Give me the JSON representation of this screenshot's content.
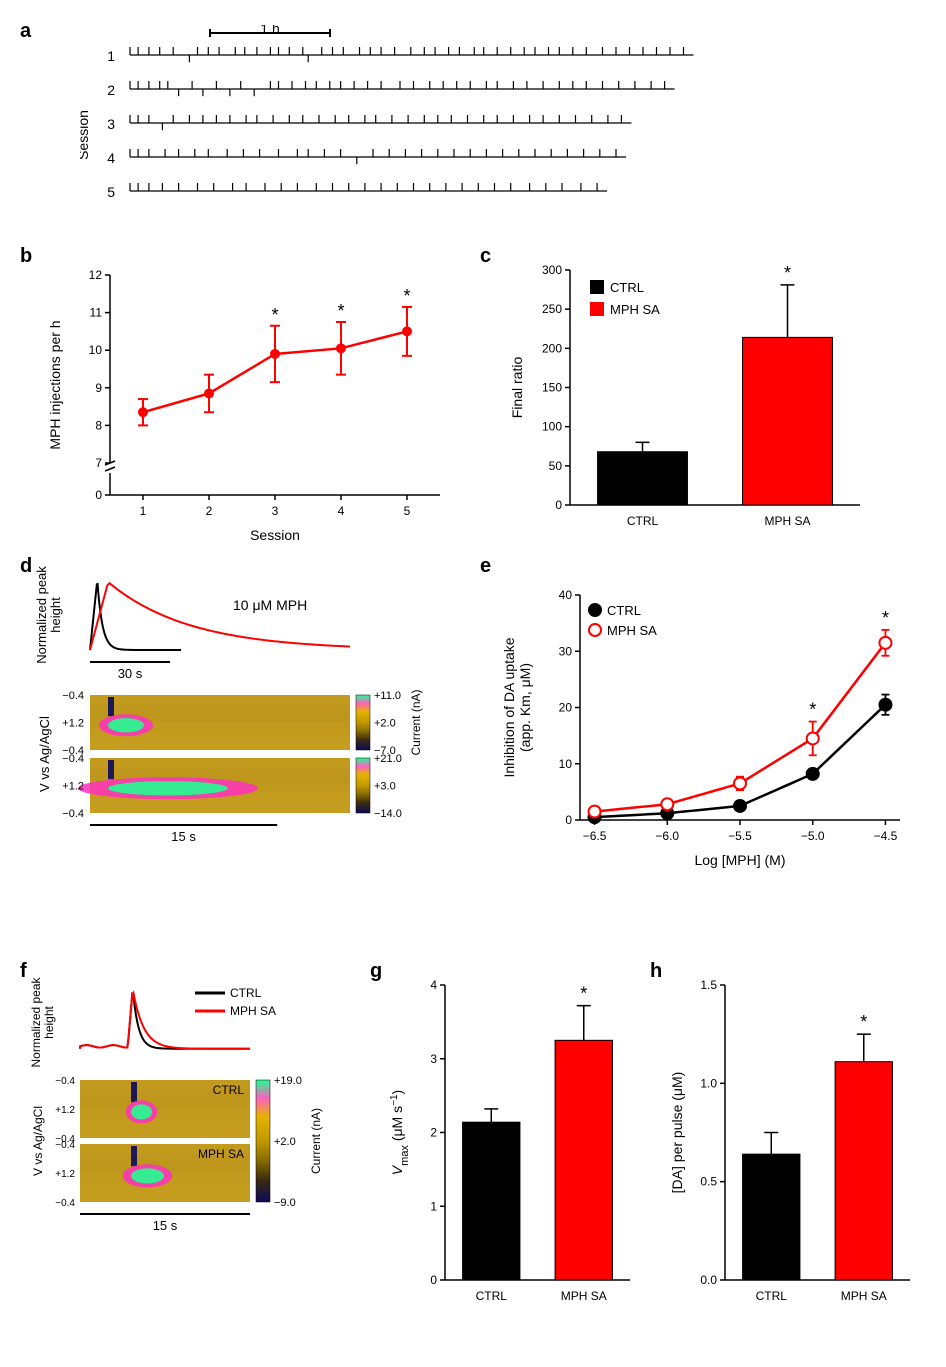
{
  "panelLabels": {
    "a": "a",
    "b": "b",
    "c": "c",
    "d": "d",
    "e": "e",
    "f": "f",
    "g": "g",
    "h": "h"
  },
  "panelA": {
    "ylabel": "Session",
    "scalebar_label": "1 h",
    "sessions": [
      {
        "label": "1",
        "ticks": [
          0,
          6,
          14,
          22,
          32,
          44,
          50,
          58,
          66,
          78,
          85,
          94,
          104,
          110,
          118,
          128,
          132,
          142,
          150,
          158,
          170,
          178,
          186,
          196,
          208,
          218,
          226,
          236,
          244,
          255,
          262,
          272,
          282,
          292,
          300,
          310,
          318,
          328,
          338,
          350,
          360,
          370,
          380,
          390,
          400,
          410
        ]
      },
      {
        "label": "2",
        "ticks": [
          0,
          6,
          14,
          22,
          28,
          36,
          46,
          54,
          64,
          74,
          82,
          92,
          104,
          110,
          120,
          130,
          138,
          148,
          156,
          166,
          176,
          186,
          200,
          210,
          222,
          232,
          242,
          252,
          264,
          272,
          284,
          294,
          306,
          318,
          328,
          338,
          350,
          362,
          374,
          386,
          396
        ]
      },
      {
        "label": "3",
        "ticks": [
          0,
          6,
          14,
          24,
          32,
          44,
          54,
          64,
          74,
          86,
          94,
          106,
          118,
          128,
          140,
          152,
          162,
          174,
          182,
          194,
          206,
          218,
          228,
          238,
          250,
          262,
          272,
          284,
          296,
          306,
          318,
          330,
          342,
          354,
          364
        ]
      },
      {
        "label": "4",
        "ticks": [
          0,
          6,
          14,
          26,
          36,
          48,
          58,
          72,
          84,
          96,
          110,
          124,
          132,
          144,
          156,
          168,
          180,
          192,
          204,
          216,
          228,
          240,
          252,
          264,
          276,
          288,
          300,
          312,
          324,
          336,
          348,
          360
        ]
      },
      {
        "label": "5",
        "ticks": [
          0,
          6,
          14,
          24,
          36,
          50,
          62,
          76,
          86,
          100,
          112,
          124,
          138,
          150,
          162,
          174,
          186,
          198,
          210,
          222,
          234,
          246,
          258,
          270,
          282,
          296,
          308,
          320,
          334,
          346
        ]
      }
    ],
    "scalebar_x0": 130,
    "scalebar_x1": 250,
    "line_color": "#000000"
  },
  "panelB": {
    "type": "line",
    "xlabel": "Session",
    "ylabel": "MPH injections per h",
    "xvals": [
      1,
      2,
      3,
      4,
      5
    ],
    "yvals": [
      8.35,
      8.85,
      9.9,
      10.05,
      10.5
    ],
    "yerr": [
      0.35,
      0.5,
      0.75,
      0.7,
      0.65
    ],
    "stars": [
      false,
      false,
      true,
      true,
      true
    ],
    "xlim": [
      0.5,
      5.5
    ],
    "ylim_low": 7,
    "ylim_high": 12,
    "yticks": [
      0,
      7,
      8,
      9,
      10,
      11,
      12
    ],
    "line_color": "#ff0000",
    "label_fontsize": 14,
    "tick_fontsize": 12,
    "star": "*"
  },
  "panelC": {
    "type": "bar",
    "ylabel": "Final ratio",
    "categories": [
      "CTRL",
      "MPH SA"
    ],
    "values": [
      68,
      214
    ],
    "errors": [
      12,
      67
    ],
    "colors": [
      "#000000",
      "#ff0000"
    ],
    "ylim": [
      0,
      300
    ],
    "ytick_step": 50,
    "star": "*",
    "label_fontsize": 14,
    "tick_fontsize": 12,
    "legend_box_size": 14
  },
  "panelD": {
    "ylabel_top": "Normalized peak\nheight",
    "ylabel_bot": "V vs Ag/AgCl",
    "annotation": "10 μM MPH",
    "scalebar_top": "30 s",
    "scalebar_bot": "15 s",
    "voltage_ticks": [
      "−0.4",
      "+1.2",
      "−0.4",
      "−0.4",
      "+1.2",
      "−0.4"
    ],
    "colorbar1": {
      "labels": [
        "+11.0",
        "+2.0",
        "−7.0"
      ],
      "unit": "Current (nA)"
    },
    "colorbar2": {
      "labels": [
        "+21.0",
        "+3.0",
        "−14.0"
      ]
    },
    "trace_colors": {
      "black": "#000000",
      "red": "#ff0000"
    }
  },
  "panelE": {
    "type": "line",
    "xlabel": "Log [MPH] (M)",
    "ylabel": "Inhibition of DA uptake\n(app. Km, μM)",
    "xticks": [
      -6.5,
      -6.0,
      -5.5,
      -5.0,
      -4.5
    ],
    "xtick_labels": [
      "−6.5",
      "−6.0",
      "−5.5",
      "−5.0",
      "−4.5"
    ],
    "yticks": [
      0,
      10,
      20,
      30,
      40
    ],
    "series": [
      {
        "name": "CTRL",
        "color": "#000000",
        "fill": "#000000",
        "x": [
          -6.5,
          -6.0,
          -5.5,
          -5.0,
          -4.5
        ],
        "y": [
          0.5,
          1.2,
          2.5,
          8.2,
          20.5
        ],
        "err": [
          0.3,
          0.4,
          0.5,
          0.8,
          1.8
        ]
      },
      {
        "name": "MPH SA",
        "color": "#ff0000",
        "fill": "#ffffff",
        "x": [
          -6.5,
          -6.0,
          -5.5,
          -5.0,
          -4.5
        ],
        "y": [
          1.5,
          2.8,
          6.5,
          14.5,
          31.5
        ],
        "err": [
          0.4,
          0.6,
          1.2,
          3.0,
          2.3
        ]
      }
    ],
    "stars_x": [
      -5.0,
      -4.5
    ],
    "star": "*",
    "legend_marker_size": 6,
    "label_fontsize": 14,
    "tick_fontsize": 12
  },
  "panelF": {
    "ylabel_top": "Normalized peak\nheight",
    "ylabel_bot": "V vs Ag/AgCl",
    "legend": [
      "CTRL",
      "MPH SA"
    ],
    "legend_colors": [
      "#000000",
      "#ff0000"
    ],
    "scalebar": "15 s",
    "voltage_ticks": [
      "−0.4",
      "+1.2",
      "−0.4",
      "−0.4",
      "+1.2",
      "−0.4"
    ],
    "heatmap_labels": [
      "CTRL",
      "MPH SA"
    ],
    "colorbar": {
      "labels": [
        "+19.0",
        "+2.0",
        "−9.0"
      ],
      "unit": "Current (nA)"
    }
  },
  "panelG": {
    "type": "bar",
    "ylabel": "Vmax (μM s−1)",
    "ylabel_parts": {
      "italic_V": "V",
      "sub": "max",
      "rest": " (μM s",
      "sup": "−1",
      "end": ")"
    },
    "categories": [
      "CTRL",
      "MPH SA"
    ],
    "values": [
      2.14,
      3.25
    ],
    "errors": [
      0.18,
      0.47
    ],
    "colors": [
      "#000000",
      "#ff0000"
    ],
    "ylim": [
      0,
      4
    ],
    "ytick_step": 1,
    "star": "*",
    "label_fontsize": 14,
    "tick_fontsize": 12
  },
  "panelH": {
    "type": "bar",
    "ylabel": "[DA] per pulse (μM)",
    "categories": [
      "CTRL",
      "MPH SA"
    ],
    "values": [
      0.64,
      1.11
    ],
    "errors": [
      0.11,
      0.14
    ],
    "colors": [
      "#000000",
      "#ff0000"
    ],
    "ylim": [
      0,
      1.5
    ],
    "ytick_step": 0.5,
    "yticklabels": [
      "0.0",
      "0.5",
      "1.0",
      "1.5"
    ],
    "star": "*",
    "label_fontsize": 14,
    "tick_fontsize": 12
  },
  "heatmap_colors": [
    "#0a0a5a",
    "#5a4a00",
    "#9a8000",
    "#c09800",
    "#d8a800",
    "#e5b000",
    "#ff00ff",
    "#00ff7f",
    "#00ffbf"
  ]
}
